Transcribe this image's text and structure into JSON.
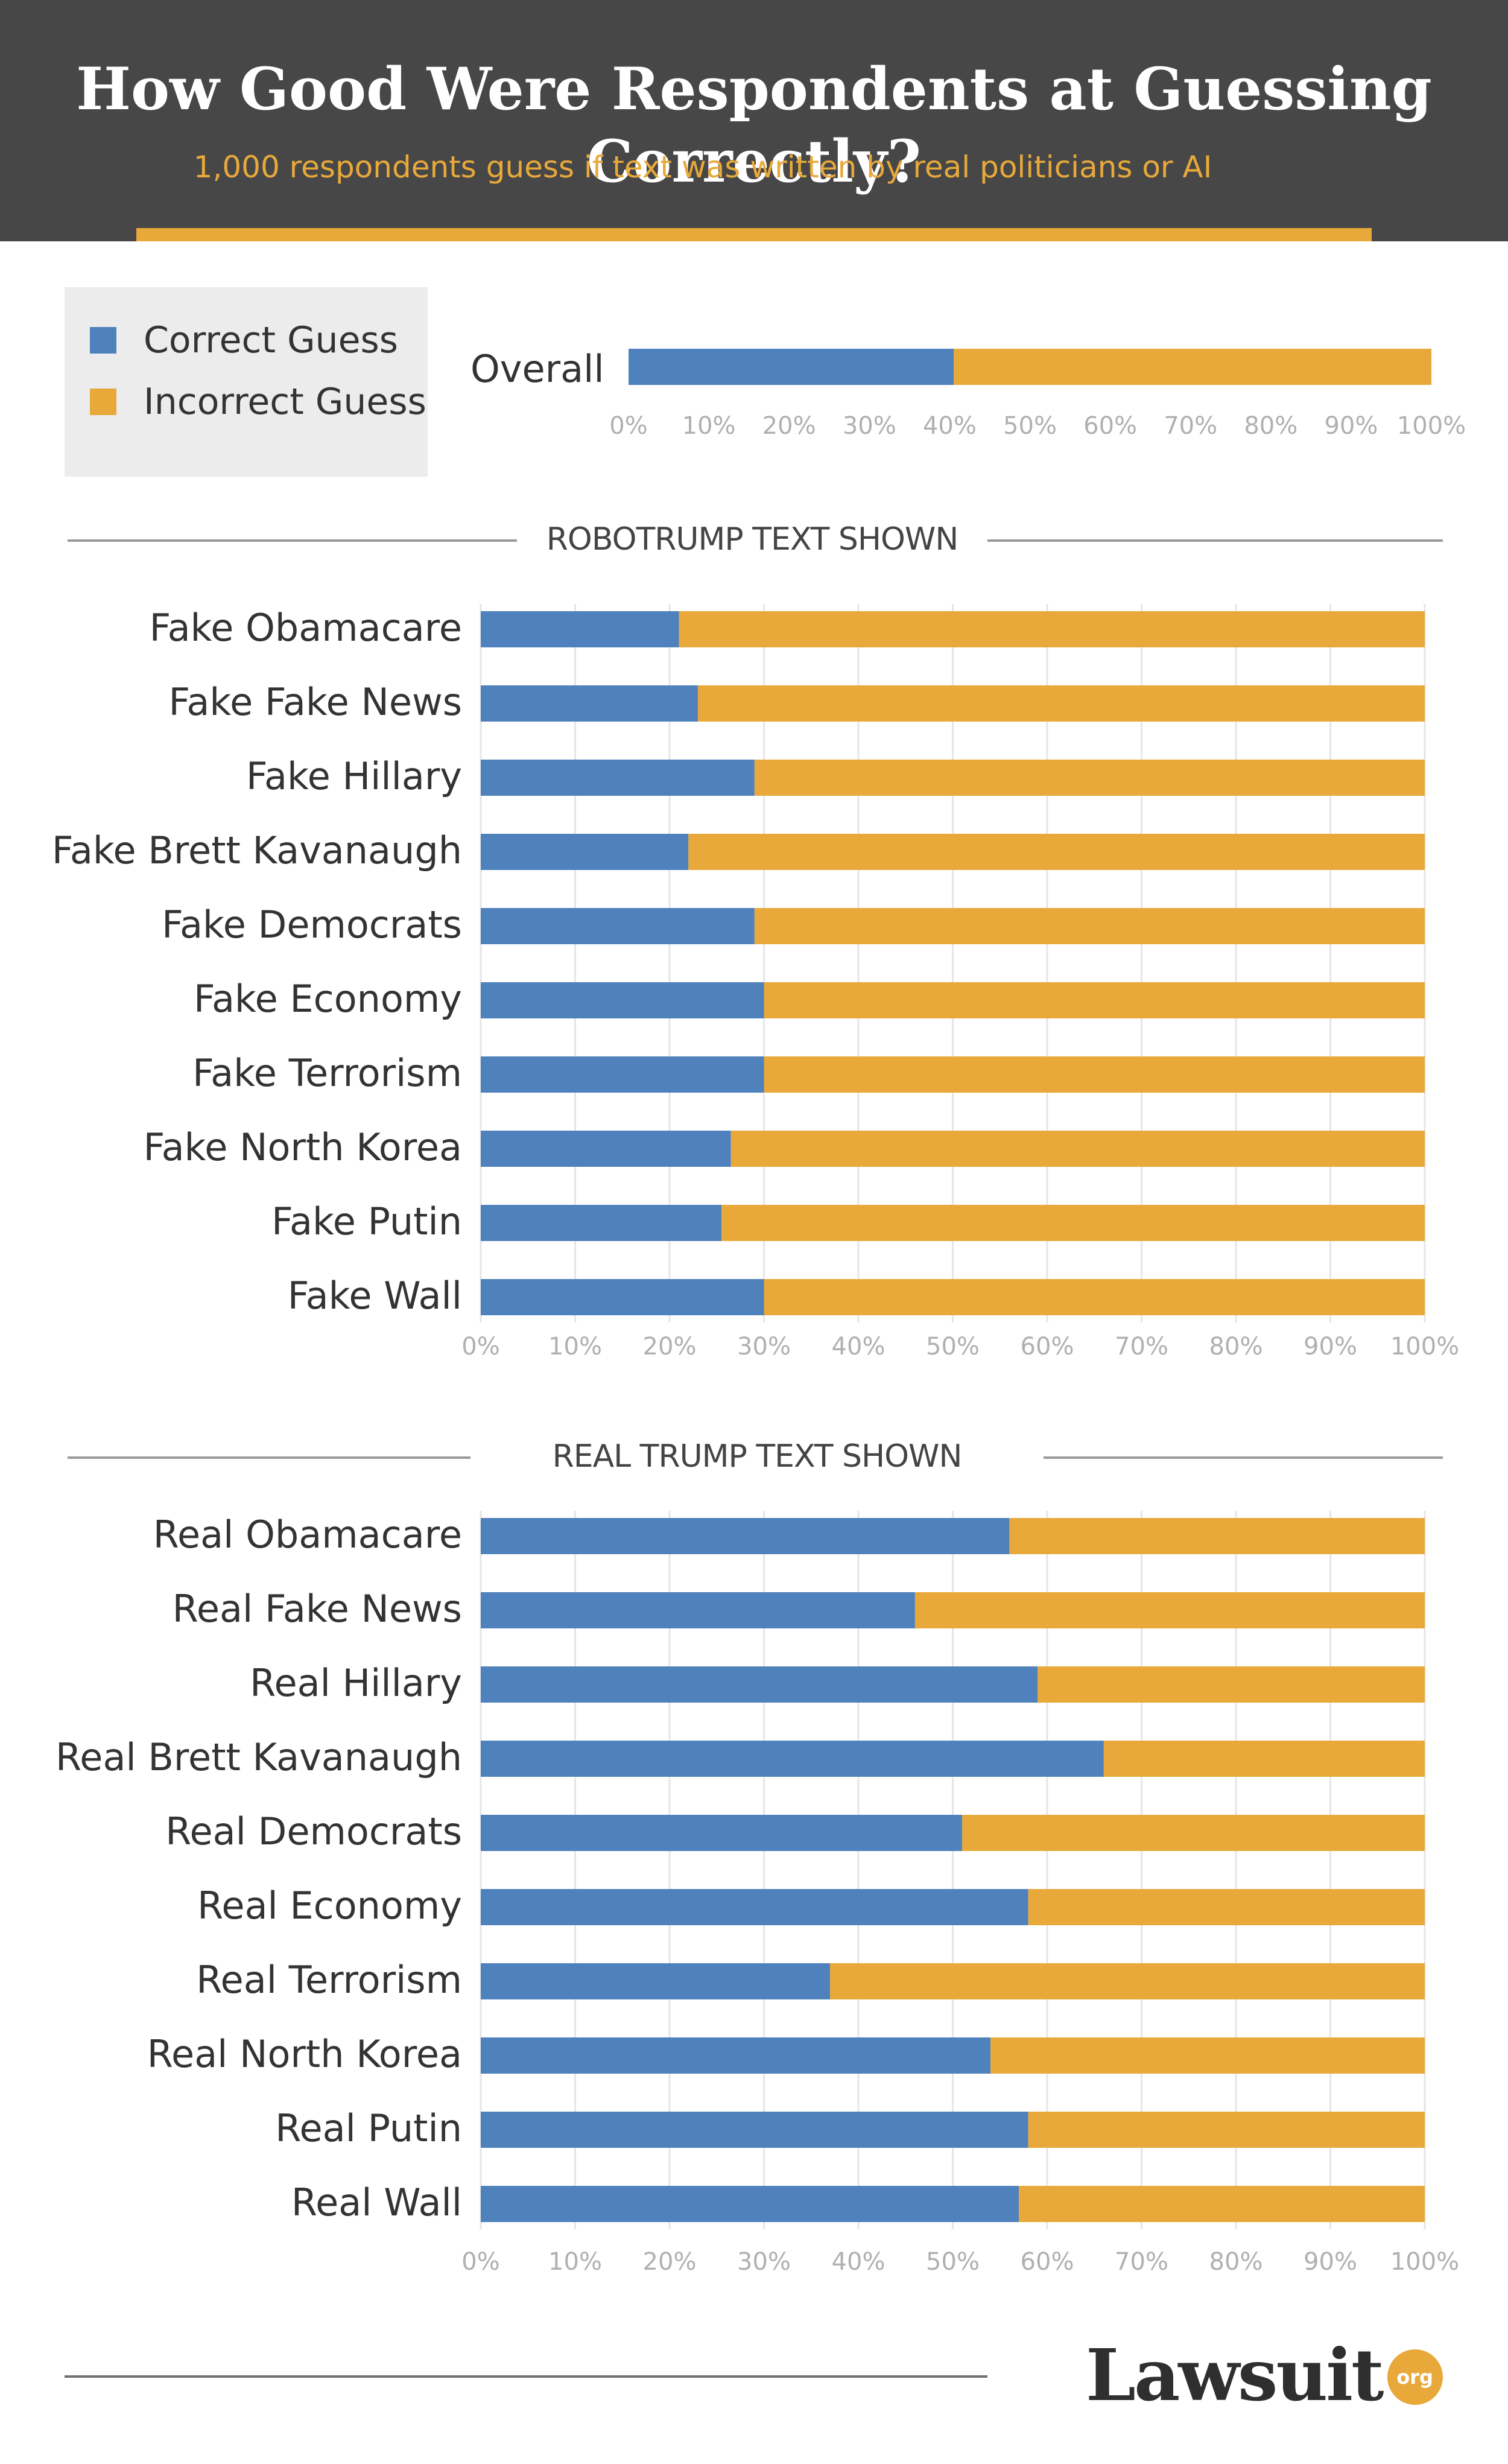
{
  "header": {
    "title": "How Good Were Respondents at Guessing Correctly?",
    "subtitle": "1,000 respondents guess if text was written by real politicians or AI"
  },
  "legend": {
    "correct_label": "Correct Guess",
    "incorrect_label": "Incorrect Guess"
  },
  "colors": {
    "correct": "#4f81bd",
    "incorrect": "#e8a93a",
    "header_bg": "#474747",
    "gridline": "#e6e6e6",
    "tick_text": "#b0b0b0"
  },
  "logo": {
    "name": "Lawsuit",
    "suffix": "org"
  },
  "chart_data": [
    {
      "type": "bar",
      "orientation": "horizontal",
      "stacked": true,
      "title": "Overall",
      "categories": [
        "Overall"
      ],
      "series": [
        {
          "name": "Correct Guess",
          "values": [
            40.5
          ]
        },
        {
          "name": "Incorrect Guess",
          "values": [
            59.5
          ]
        }
      ],
      "xlim": [
        0,
        100
      ],
      "xticks": [
        "0%",
        "10%",
        "20%",
        "30%",
        "40%",
        "50%",
        "60%",
        "70%",
        "80%",
        "90%",
        "100%"
      ]
    },
    {
      "type": "bar",
      "orientation": "horizontal",
      "stacked": true,
      "title": "ROBOTRUMP TEXT  SHOWN",
      "categories": [
        "Fake Obamacare",
        "Fake Fake News",
        "Fake Hillary",
        "Fake Brett Kavanaugh",
        "Fake Democrats",
        "Fake Economy",
        "Fake Terrorism",
        "Fake North Korea",
        "Fake Putin",
        "Fake Wall"
      ],
      "series": [
        {
          "name": "Correct Guess",
          "values": [
            21,
            23,
            29,
            22,
            29,
            30,
            30,
            26.5,
            25.5,
            30
          ]
        },
        {
          "name": "Incorrect Guess",
          "values": [
            79,
            77,
            71,
            78,
            71,
            70,
            70,
            73.5,
            74.5,
            70
          ]
        }
      ],
      "xlim": [
        0,
        100
      ],
      "xticks": [
        "0%",
        "10%",
        "20%",
        "30%",
        "40%",
        "50%",
        "60%",
        "70%",
        "80%",
        "90%",
        "100%"
      ],
      "grid": true
    },
    {
      "type": "bar",
      "orientation": "horizontal",
      "stacked": true,
      "title": "REAL TRUMP TEXT SHOWN",
      "categories": [
        "Real Obamacare",
        "Real Fake News",
        "Real Hillary",
        "Real Brett Kavanaugh",
        "Real Democrats",
        "Real Economy",
        "Real Terrorism",
        "Real North Korea",
        "Real Putin",
        "Real Wall"
      ],
      "series": [
        {
          "name": "Correct Guess",
          "values": [
            56,
            46,
            59,
            66,
            51,
            58,
            37,
            54,
            58,
            57
          ]
        },
        {
          "name": "Incorrect Guess",
          "values": [
            44,
            54,
            41,
            34,
            49,
            42,
            63,
            46,
            42,
            43
          ]
        }
      ],
      "xlim": [
        0,
        100
      ],
      "xticks": [
        "0%",
        "10%",
        "20%",
        "30%",
        "40%",
        "50%",
        "60%",
        "70%",
        "80%",
        "90%",
        "100%"
      ],
      "grid": true
    }
  ]
}
